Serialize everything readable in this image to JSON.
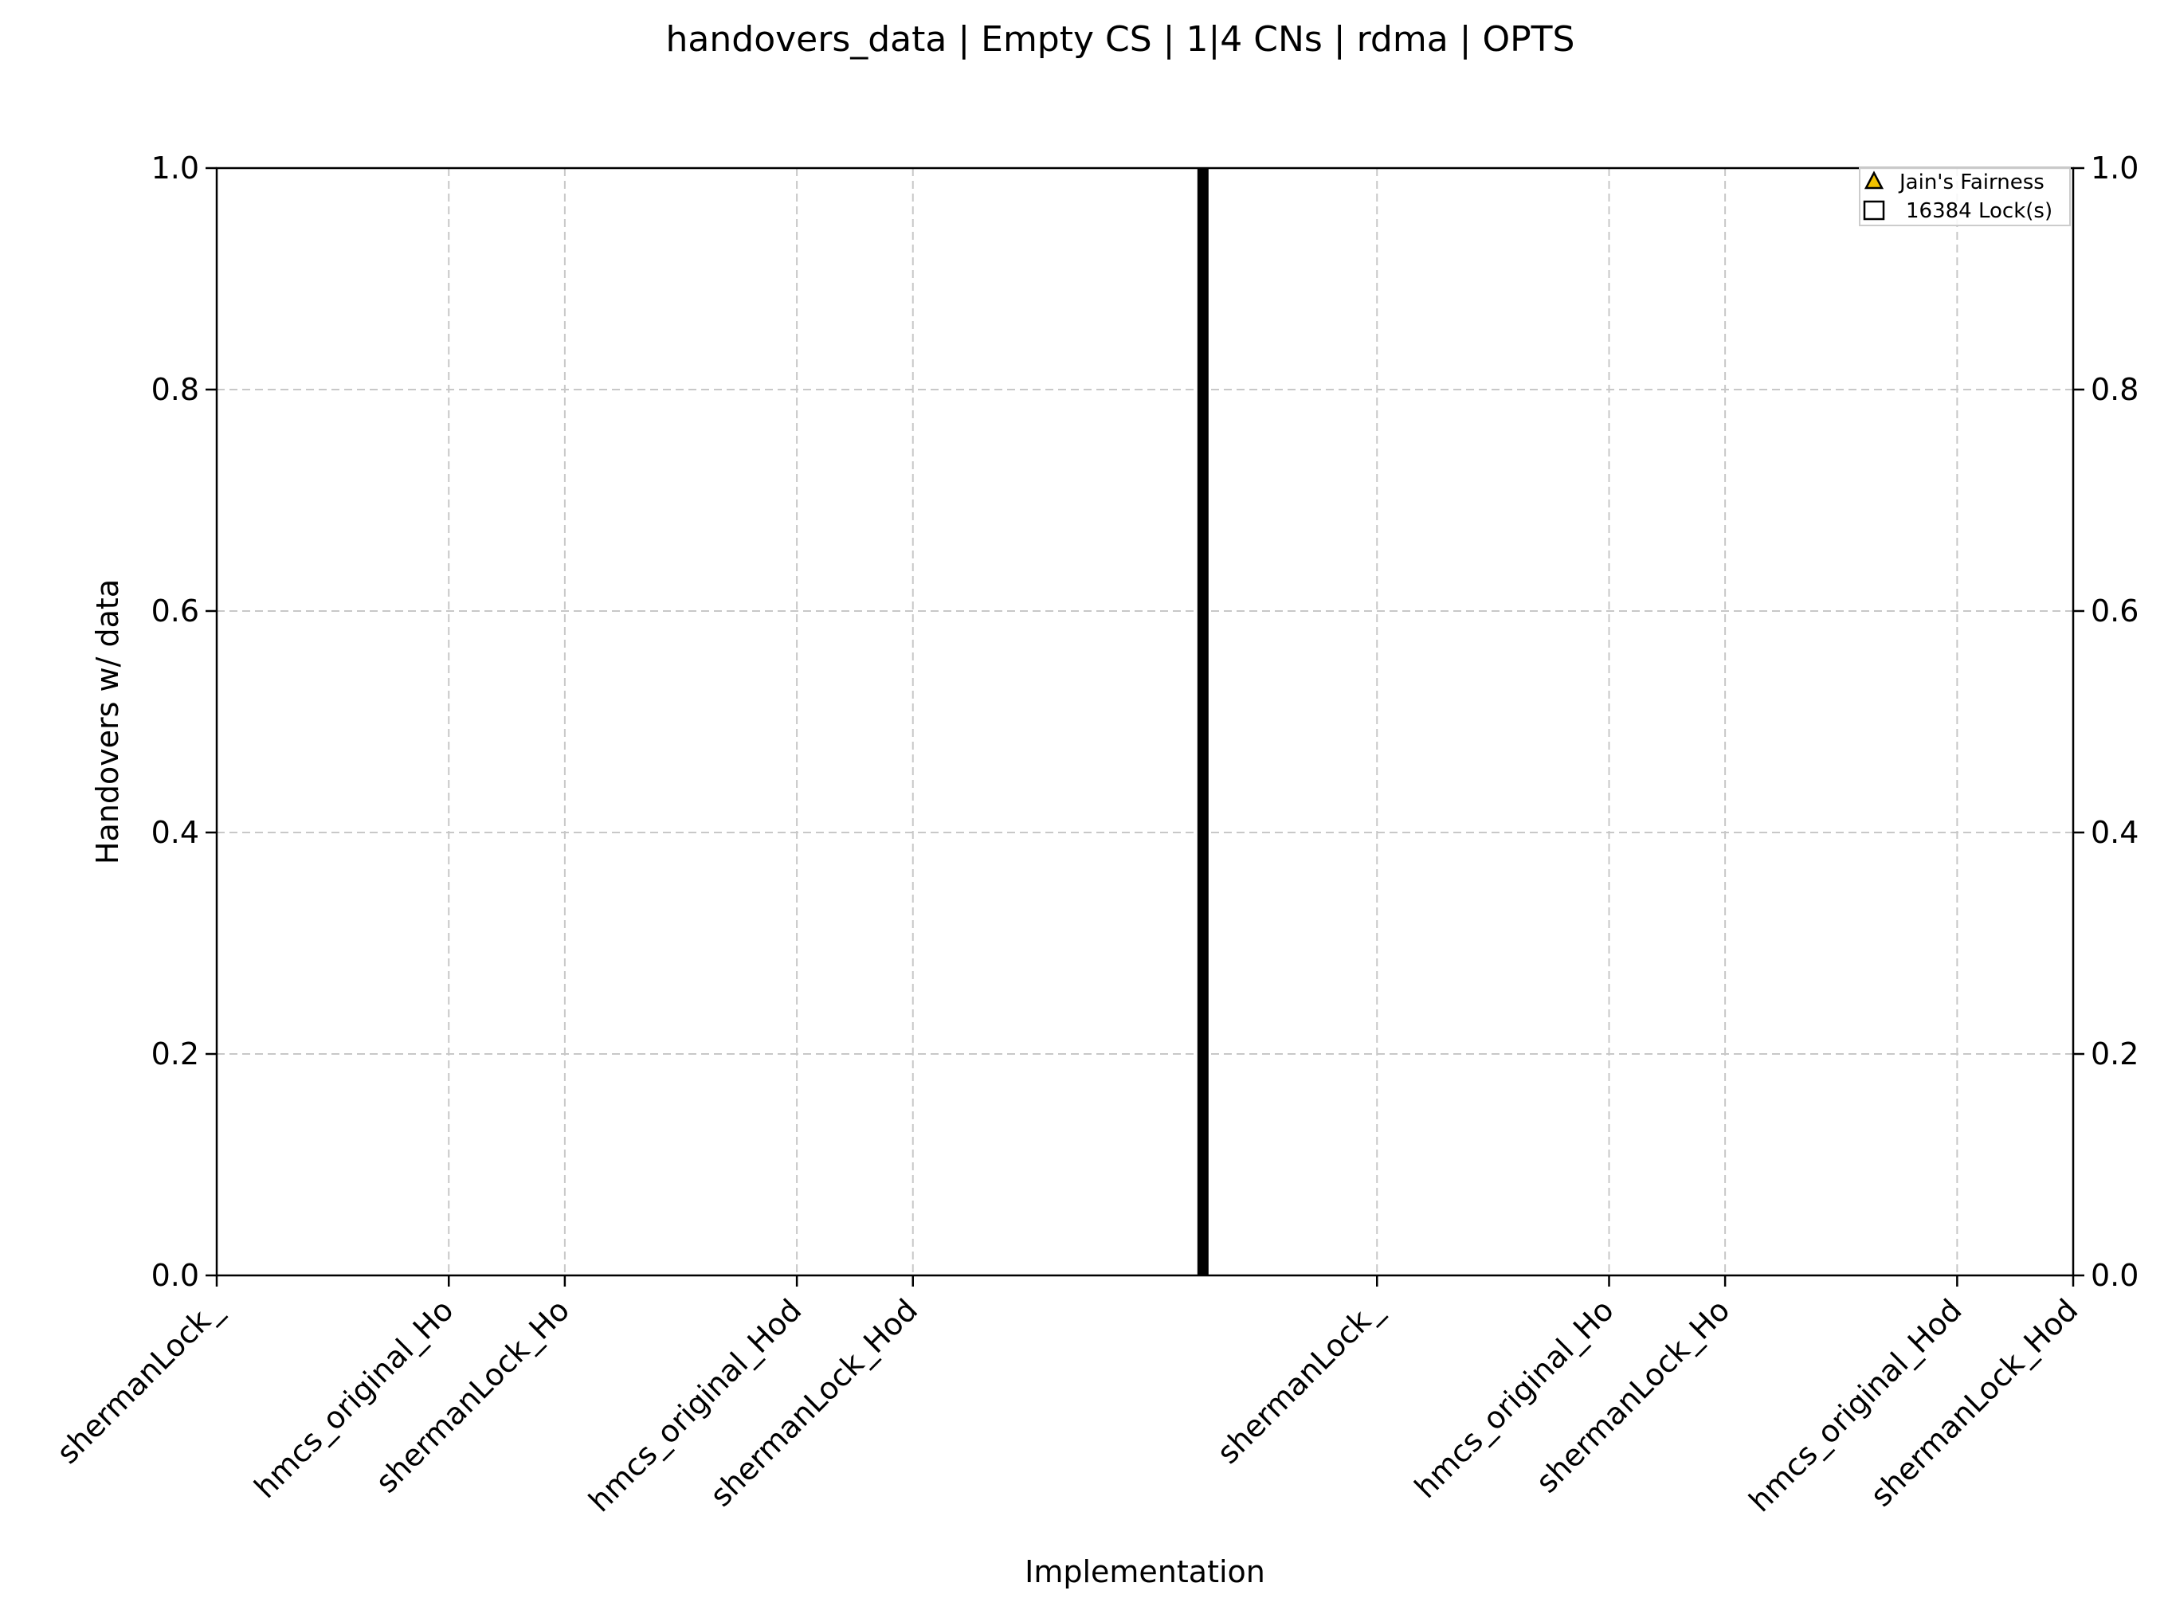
{
  "chart_data": {
    "type": "bar",
    "title": "handovers_data | Empty CS | 1|4 CNs | rdma | OPTS",
    "xlabel": "Implementation",
    "ylabel": "Handovers w/ data",
    "ylim": [
      0,
      1.0
    ],
    "y_ticks": [
      "0.0",
      "0.2",
      "0.4",
      "0.6",
      "0.8",
      "1.0"
    ],
    "y2lim": [
      0,
      1.0
    ],
    "y2_ticks": [
      "0.0",
      "0.2",
      "0.4",
      "0.6",
      "0.8",
      "1.0"
    ],
    "categories": [
      "shermanLock_",
      "hmcs_original_Ho",
      "shermanLock_Ho",
      "hmcs_original_Hod",
      "shermanLock_Hod",
      "shermanLock_",
      "hmcs_original_Ho",
      "shermanLock_Ho",
      "hmcs_original_Hod",
      "shermanLock_Hod"
    ],
    "category_positions": [
      0,
      1,
      1.5,
      2.5,
      3,
      5,
      6,
      6.5,
      7.5,
      8
    ],
    "xlim": [
      0,
      8
    ],
    "group_separator_x": 4.25,
    "grid": true,
    "legend": {
      "placement": "top-right",
      "entries": [
        {
          "label": "Jain's Fairness",
          "marker": "triangle",
          "color": "#f2c200"
        },
        {
          "label": "16384 Lock(s)",
          "marker": "square",
          "color": "#ffffff"
        }
      ]
    },
    "colors": {
      "grid": "#c8c8c8",
      "separator": "#000000",
      "axes": "#000000"
    }
  }
}
